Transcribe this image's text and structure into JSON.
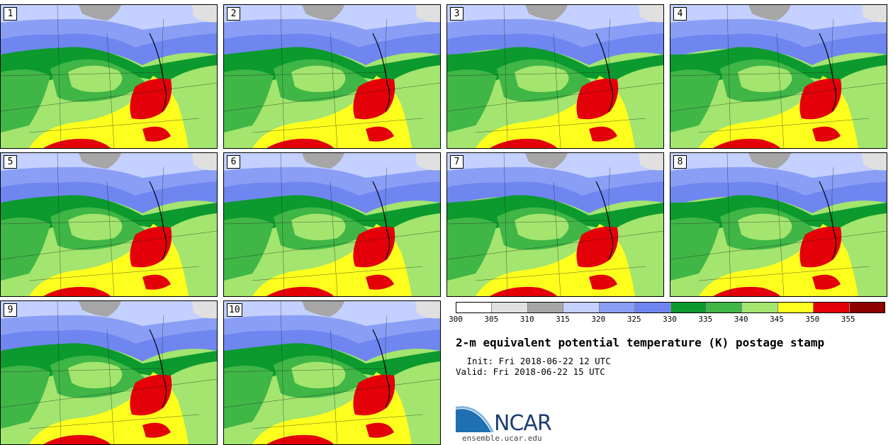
{
  "panels": [
    {
      "label": "1"
    },
    {
      "label": "2"
    },
    {
      "label": "3"
    },
    {
      "label": "4"
    },
    {
      "label": "5"
    },
    {
      "label": "6"
    },
    {
      "label": "7"
    },
    {
      "label": "8"
    },
    {
      "label": "9"
    },
    {
      "label": "10"
    }
  ],
  "legend": {
    "colors": [
      "#ffffff",
      "#e0e0e0",
      "#a6a6a6",
      "#c4d0ff",
      "#8a9ef5",
      "#6f86f0",
      "#0c9a2e",
      "#3fb646",
      "#a3e56e",
      "#ffff1e",
      "#e30008",
      "#8f0000"
    ],
    "ticks": [
      "300",
      "305",
      "310",
      "315",
      "320",
      "325",
      "330",
      "335",
      "340",
      "345",
      "350",
      "355"
    ]
  },
  "title": "2-m equivalent potential temperature (K) postage stamp",
  "init": " Init: Fri 2018-06-22 12 UTC",
  "valid": "Valid: Fri 2018-06-22 15 UTC",
  "logo": {
    "text": "NCAR",
    "url": "ensemble.ucar.edu",
    "color": "#1c3d72"
  }
}
